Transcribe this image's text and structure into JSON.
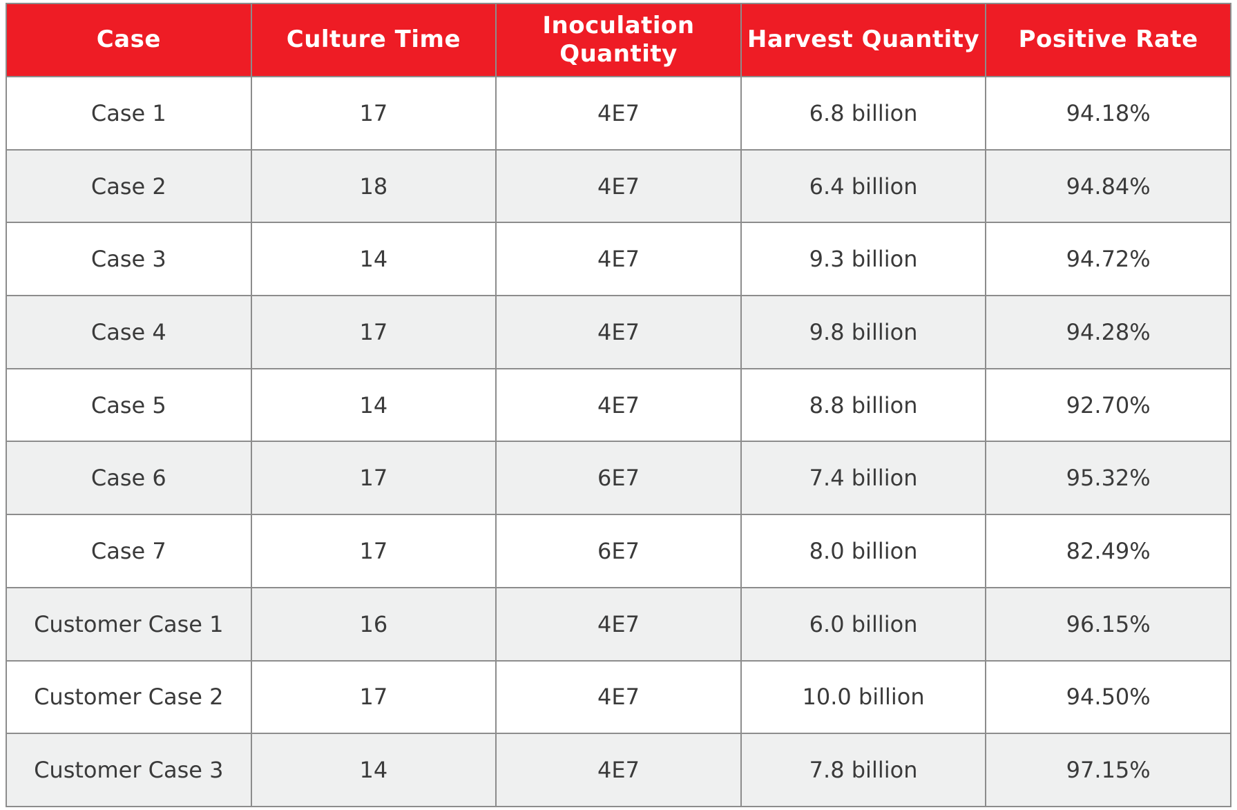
{
  "table": {
    "headers": [
      "Case",
      "Culture Time",
      "Inoculation Quantity",
      "Harvest Quantity",
      "Positive Rate"
    ],
    "rows": [
      [
        "Case 1",
        "17",
        "4E7",
        "6.8 billion",
        "94.18%"
      ],
      [
        "Case 2",
        "18",
        "4E7",
        "6.4 billion",
        "94.84%"
      ],
      [
        "Case 3",
        "14",
        "4E7",
        "9.3 billion",
        "94.72%"
      ],
      [
        "Case 4",
        "17",
        "4E7",
        "9.8 billion",
        "94.28%"
      ],
      [
        "Case 5",
        "14",
        "4E7",
        "8.8 billion",
        "92.70%"
      ],
      [
        "Case 6",
        "17",
        "6E7",
        "7.4 billion",
        "95.32%"
      ],
      [
        "Case 7",
        "17",
        "6E7",
        "8.0 billion",
        "82.49%"
      ],
      [
        "Customer Case 1",
        "16",
        "4E7",
        "6.0 billion",
        "96.15%"
      ],
      [
        "Customer Case 2",
        "17",
        "4E7",
        "10.0 billion",
        "94.50%"
      ],
      [
        "Customer Case 3",
        "14",
        "4E7",
        "7.8 billion",
        "97.15%"
      ]
    ]
  },
  "colors": {
    "header_bg": "#ee1c25",
    "header_text": "#ffffff",
    "row_alt_bg": "#eff0f0",
    "border": "#8c8c8c",
    "cell_text": "#3a3a3a"
  }
}
